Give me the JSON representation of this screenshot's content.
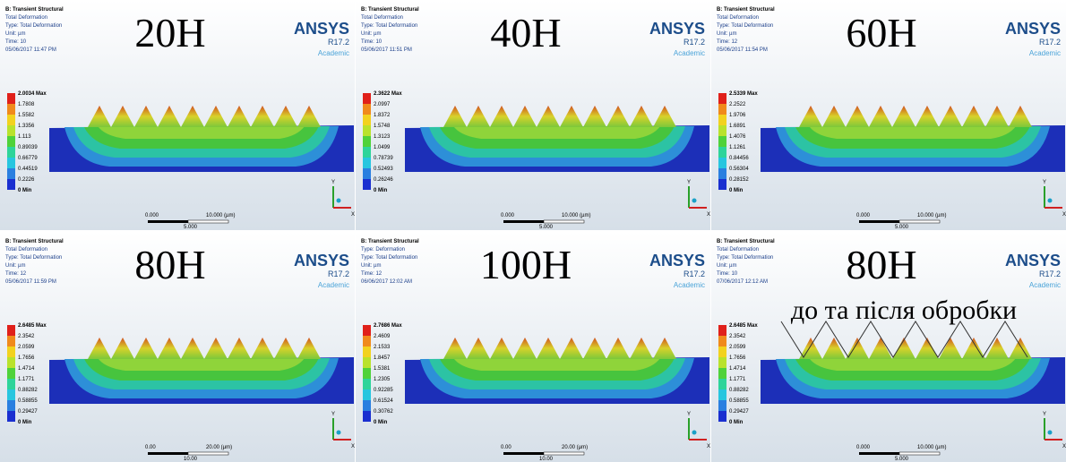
{
  "panels": [
    {
      "title": "20H",
      "info": [
        "B: Transient Structural",
        "Total Deformation",
        "Type: Total Deformation",
        "Unit: µm",
        "Time: 10",
        "05/06/2017 11:47 PM"
      ],
      "legend": [
        "2.0034 Max",
        "1.7808",
        "1.5582",
        "1.3356",
        "1.113",
        "0.89039",
        "0.66779",
        "0.44519",
        "0.2226",
        "0 Min"
      ],
      "logo": {
        "name": "ANSYS",
        "version": "R17.2",
        "edition": "Academic"
      },
      "scale": {
        "start": "0.000",
        "end": "10.000 (µm)",
        "mid": "5.000"
      },
      "triad": {
        "y": "Y",
        "x": "X"
      }
    },
    {
      "title": "40H",
      "info": [
        "B: Transient Structural",
        "Total Deformation",
        "Type: Total Deformation",
        "Unit: µm",
        "Time: 10",
        "05/06/2017 11:51 PM"
      ],
      "legend": [
        "2.3622 Max",
        "2.0997",
        "1.8372",
        "1.5748",
        "1.3123",
        "1.0499",
        "0.78739",
        "0.52493",
        "0.26246",
        "0 Min"
      ],
      "logo": {
        "name": "ANSYS",
        "version": "R17.2",
        "edition": "Academic"
      },
      "scale": {
        "start": "0.000",
        "end": "10.000 (µm)",
        "mid": "5.000"
      },
      "triad": {
        "y": "Y",
        "x": "X"
      }
    },
    {
      "title": "60H",
      "info": [
        "B: Transient Structural",
        "Total Deformation",
        "Type: Total Deformation",
        "Unit: µm",
        "Time: 12",
        "05/06/2017 11:54 PM"
      ],
      "legend": [
        "2.5339 Max",
        "2.2522",
        "1.9706",
        "1.6891",
        "1.4076",
        "1.1261",
        "0.84456",
        "0.56304",
        "0.28152",
        "0 Min"
      ],
      "logo": {
        "name": "ANSYS",
        "version": "R17.2",
        "edition": "Academic"
      },
      "scale": {
        "start": "0.000",
        "end": "10.000 (µm)",
        "mid": "5.000"
      },
      "triad": {
        "y": "Y",
        "x": "X"
      }
    },
    {
      "title": "80H",
      "info": [
        "B: Transient Structural",
        "Total Deformation",
        "Type: Total Deformation",
        "Unit: µm",
        "Time: 12",
        "05/06/2017 11:59 PM"
      ],
      "legend": [
        "2.6485 Max",
        "2.3542",
        "2.0599",
        "1.7656",
        "1.4714",
        "1.1771",
        "0.88282",
        "0.58855",
        "0.29427",
        "0 Min"
      ],
      "logo": {
        "name": "ANSYS",
        "version": "R17.2",
        "edition": "Academic"
      },
      "scale": {
        "start": "0.00",
        "end": "20.00 (µm)",
        "mid": "10.00"
      },
      "triad": {
        "y": "Y",
        "x": "X"
      }
    },
    {
      "title": "100H",
      "info": [
        "B: Transient Structural",
        "Type: Deformation",
        "Type: Total Deformation",
        "Unit: µm",
        "Time: 12",
        "06/06/2017 12:02 AM"
      ],
      "legend": [
        "2.7686 Max",
        "2.4609",
        "2.1533",
        "1.8457",
        "1.5381",
        "1.2305",
        "0.92285",
        "0.61524",
        "0.30762",
        "0 Min"
      ],
      "logo": {
        "name": "ANSYS",
        "version": "R17.2",
        "edition": "Academic"
      },
      "scale": {
        "start": "0.00",
        "end": "20.00 (µm)",
        "mid": "10.00"
      },
      "triad": {
        "y": "Y",
        "x": "X"
      }
    },
    {
      "title": "80H",
      "note": "до та після обробки",
      "info": [
        "B: Transient Structural",
        "Total Deformation",
        "Type: Total Deformation",
        "Unit: µm",
        "Time: 10",
        "07/06/2017 12:12 AM"
      ],
      "legend": [
        "2.6485 Max",
        "2.3542",
        "2.0599",
        "1.7656",
        "1.4714",
        "1.1771",
        "0.88282",
        "0.58855",
        "0.29427",
        "0 Min"
      ],
      "logo": {
        "name": "ANSYS",
        "version": "R17.2",
        "edition": "Academic"
      },
      "scale": {
        "start": "0.000",
        "end": "10.000 (µm)",
        "mid": "5.000"
      },
      "triad": {
        "y": "Y",
        "x": "X"
      }
    }
  ]
}
